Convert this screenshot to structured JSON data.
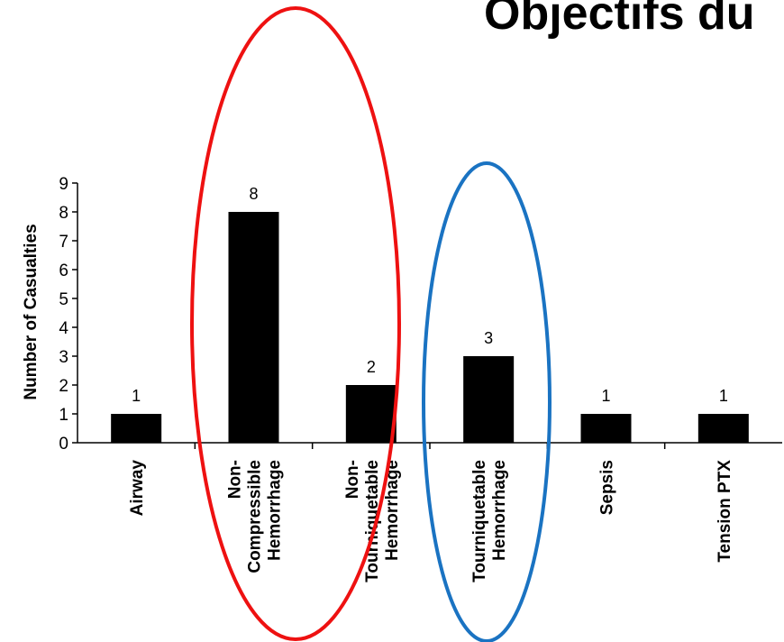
{
  "slide": {
    "title": "Objectifs du"
  },
  "annotation_colors": {
    "red_ellipse": "#ee1111",
    "blue_ellipse": "#1a73c2"
  },
  "chart_data": {
    "type": "bar",
    "title": "",
    "xlabel": "",
    "ylabel": "Number of Casualties",
    "ylim": [
      0,
      9
    ],
    "yticks": [
      0,
      1,
      2,
      3,
      4,
      5,
      6,
      7,
      8,
      9
    ],
    "categories": [
      [
        "Airway"
      ],
      [
        "Non-",
        "Compressible",
        "Hemorrhage"
      ],
      [
        "Non-",
        "Tourniquetable",
        "Hemorrhage"
      ],
      [
        "Tourniquetable",
        "Hemorrhage"
      ],
      [
        "Sepsis"
      ],
      [
        "Tension PTX"
      ]
    ],
    "values": [
      1,
      8,
      2,
      3,
      1,
      1
    ],
    "data_labels": [
      "1",
      "8",
      "2",
      "3",
      "1",
      "1"
    ],
    "bar_color": "#000000",
    "grid": false,
    "legend": "none"
  }
}
